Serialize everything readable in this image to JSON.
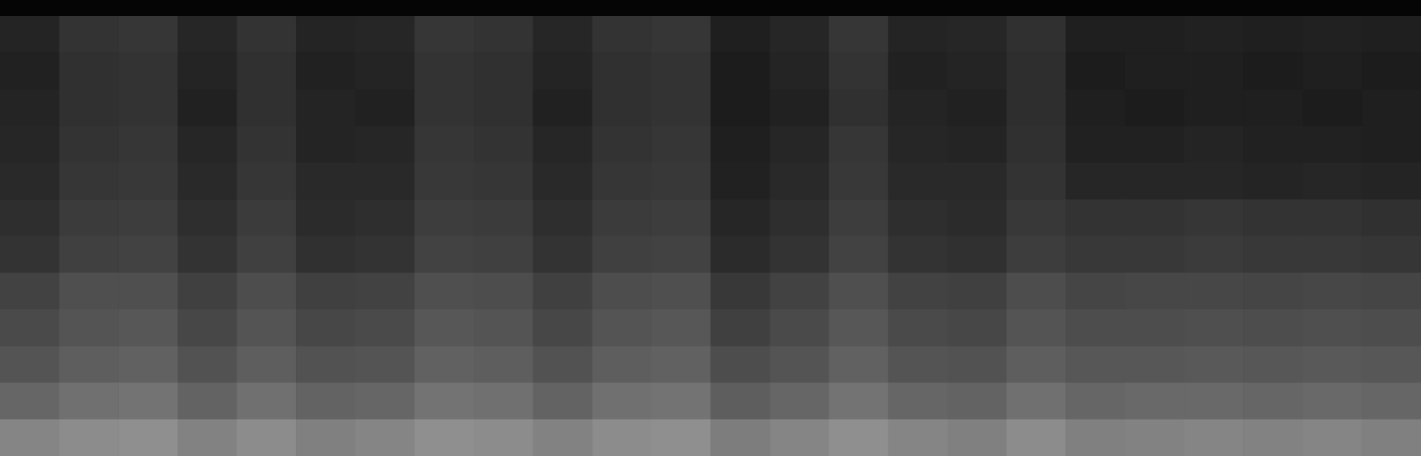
{
  "chart_data": {
    "type": "heatmap",
    "tick_labels": false,
    "grid": false,
    "zlim": [
      0,
      100
    ],
    "cells": [
      [
        14,
        20,
        21,
        15,
        20,
        14,
        15,
        21,
        20,
        15,
        20,
        21,
        12,
        15,
        21,
        14,
        15,
        19,
        12,
        12,
        13,
        12,
        13,
        12
      ],
      [
        13,
        19,
        20,
        14,
        19,
        13,
        14,
        20,
        19,
        14,
        19,
        20,
        11,
        14,
        20,
        13,
        14,
        18,
        11,
        12,
        12,
        11,
        12,
        11
      ],
      [
        14,
        19,
        20,
        13,
        19,
        14,
        13,
        20,
        19,
        13,
        19,
        20,
        11,
        13,
        19,
        14,
        13,
        18,
        12,
        11,
        12,
        12,
        11,
        12
      ],
      [
        15,
        20,
        21,
        15,
        20,
        14,
        15,
        21,
        20,
        15,
        20,
        21,
        12,
        15,
        21,
        15,
        14,
        19,
        13,
        13,
        14,
        13,
        13,
        12
      ],
      [
        16,
        21,
        22,
        16,
        21,
        16,
        16,
        22,
        21,
        16,
        21,
        22,
        13,
        16,
        22,
        16,
        16,
        20,
        15,
        15,
        15,
        14,
        15,
        14
      ],
      [
        18,
        23,
        24,
        18,
        23,
        17,
        18,
        24,
        23,
        18,
        23,
        24,
        15,
        18,
        24,
        18,
        17,
        22,
        20,
        20,
        21,
        20,
        20,
        19
      ],
      [
        20,
        25,
        26,
        20,
        25,
        19,
        20,
        26,
        25,
        20,
        25,
        26,
        17,
        20,
        26,
        20,
        19,
        24,
        22,
        22,
        23,
        22,
        22,
        21
      ],
      [
        26,
        31,
        31,
        25,
        30,
        25,
        26,
        31,
        30,
        25,
        30,
        31,
        22,
        26,
        31,
        26,
        25,
        30,
        27,
        28,
        28,
        27,
        28,
        27
      ],
      [
        29,
        33,
        34,
        28,
        33,
        28,
        29,
        34,
        33,
        28,
        33,
        34,
        25,
        29,
        34,
        29,
        28,
        33,
        30,
        30,
        31,
        30,
        31,
        30
      ],
      [
        33,
        37,
        38,
        32,
        37,
        32,
        33,
        38,
        37,
        32,
        37,
        38,
        30,
        33,
        38,
        33,
        32,
        37,
        34,
        34,
        35,
        34,
        35,
        34
      ],
      [
        40,
        44,
        45,
        39,
        44,
        39,
        40,
        45,
        44,
        39,
        44,
        45,
        37,
        40,
        45,
        40,
        39,
        44,
        40,
        41,
        41,
        40,
        41,
        40
      ],
      [
        52,
        55,
        56,
        51,
        55,
        50,
        52,
        56,
        55,
        51,
        55,
        56,
        49,
        52,
        56,
        52,
        50,
        55,
        50,
        51,
        52,
        51,
        52,
        50
      ]
    ]
  }
}
